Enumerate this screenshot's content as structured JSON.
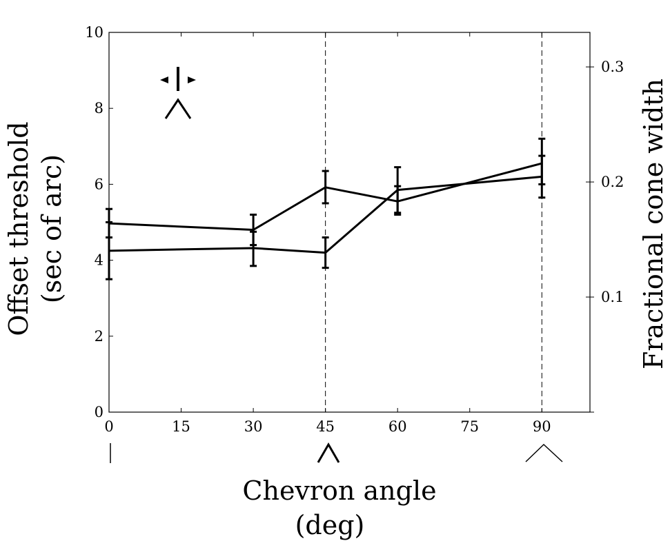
{
  "chart_data": {
    "type": "line",
    "xlabel": [
      "Chevron angle",
      "(deg)"
    ],
    "ylabel": [
      "Offset threshold",
      "(sec of arc)"
    ],
    "y2label": "Fractional cone width",
    "xlim": [
      0,
      100
    ],
    "ylim": [
      0,
      10
    ],
    "y2lim": [
      0,
      0.33
    ],
    "x_ticks": [
      0,
      15,
      30,
      45,
      60,
      75,
      90
    ],
    "x_tick_labels": [
      "0",
      "15",
      "30",
      "45",
      "60",
      "75",
      "90"
    ],
    "y_ticks": [
      0,
      2,
      4,
      6,
      8,
      10
    ],
    "y_tick_labels": [
      "0",
      "2",
      "4",
      "6",
      "8",
      "10"
    ],
    "y2_ticks": [
      0.1,
      0.2,
      0.3
    ],
    "y2_tick_labels": [
      "0.1",
      "0.2",
      "0.3"
    ],
    "grid": false,
    "vlines": [
      45,
      90
    ],
    "series": [
      {
        "x": [
          0,
          30,
          45,
          60,
          90
        ],
        "values": [
          4.97,
          4.8,
          5.92,
          5.55,
          6.55
        ],
        "err_low": [
          4.6,
          4.4,
          5.5,
          5.2,
          6.0
        ],
        "err_high": [
          5.35,
          5.2,
          6.35,
          5.95,
          7.2
        ]
      },
      {
        "x": [
          0,
          30,
          45,
          60,
          90
        ],
        "values": [
          4.25,
          4.32,
          4.2,
          5.85,
          6.2
        ],
        "err_low": [
          3.5,
          3.85,
          3.8,
          5.25,
          5.65
        ],
        "err_high": [
          5.0,
          4.75,
          4.6,
          6.45,
          6.75
        ]
      }
    ]
  }
}
